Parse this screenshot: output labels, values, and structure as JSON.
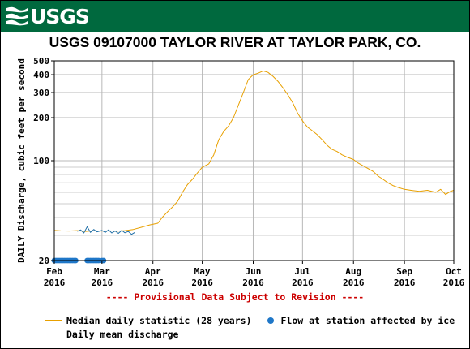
{
  "header": {
    "logo_text": "USGS",
    "colors": {
      "background": "#00693e",
      "logo": "#ffffff"
    }
  },
  "chart_data": {
    "type": "line",
    "title": "USGS 09107000 TAYLOR RIVER AT TAYLOR PARK, CO.",
    "ylabel": "DAILY Discharge, cubic feet per second",
    "yscale": "log",
    "ylim": [
      20,
      500
    ],
    "yticks": [
      20,
      100,
      200,
      300,
      400,
      500
    ],
    "xlim": [
      "2016-02-01",
      "2016-10-01"
    ],
    "x_ticks": [
      {
        "date": "2016-02-01",
        "month": "Feb",
        "year": "2016"
      },
      {
        "date": "2016-03-01",
        "month": "Mar",
        "year": "2016"
      },
      {
        "date": "2016-04-01",
        "month": "Apr",
        "year": "2016"
      },
      {
        "date": "2016-05-01",
        "month": "May",
        "year": "2016"
      },
      {
        "date": "2016-06-01",
        "month": "Jun",
        "year": "2016"
      },
      {
        "date": "2016-07-01",
        "month": "Jul",
        "year": "2016"
      },
      {
        "date": "2016-08-01",
        "month": "Aug",
        "year": "2016"
      },
      {
        "date": "2016-09-01",
        "month": "Sep",
        "year": "2016"
      },
      {
        "date": "2016-10-01",
        "month": "Oct",
        "year": "2016"
      }
    ],
    "grid": true,
    "annotation": "---- Provisional Data Subject to Revision ----",
    "series": [
      {
        "name": "Median daily statistic (28 years)",
        "color": "#e8a000",
        "points": [
          [
            "2016-02-01",
            32.5
          ],
          [
            "2016-02-05",
            32.3
          ],
          [
            "2016-02-10",
            32.2
          ],
          [
            "2016-02-15",
            32.4
          ],
          [
            "2016-02-20",
            32.0
          ],
          [
            "2016-02-25",
            32.3
          ],
          [
            "2016-03-01",
            32.2
          ],
          [
            "2016-03-05",
            32.3
          ],
          [
            "2016-03-10",
            32.1
          ],
          [
            "2016-03-15",
            32.4
          ],
          [
            "2016-03-20",
            33.0
          ],
          [
            "2016-03-25",
            34.2
          ],
          [
            "2016-03-30",
            35.5
          ],
          [
            "2016-04-04",
            36.5
          ],
          [
            "2016-04-07",
            40.5
          ],
          [
            "2016-04-10",
            44.0
          ],
          [
            "2016-04-13",
            47.5
          ],
          [
            "2016-04-16",
            52.0
          ],
          [
            "2016-04-19",
            60.0
          ],
          [
            "2016-04-22",
            68.0
          ],
          [
            "2016-04-25",
            74.0
          ],
          [
            "2016-04-28",
            82.0
          ],
          [
            "2016-05-01",
            90.0
          ],
          [
            "2016-05-05",
            95.0
          ],
          [
            "2016-05-08",
            110.0
          ],
          [
            "2016-05-11",
            140.0
          ],
          [
            "2016-05-14",
            160.0
          ],
          [
            "2016-05-17",
            175.0
          ],
          [
            "2016-05-20",
            200.0
          ],
          [
            "2016-05-23",
            245.0
          ],
          [
            "2016-05-26",
            300.0
          ],
          [
            "2016-05-29",
            370.0
          ],
          [
            "2016-06-01",
            400.0
          ],
          [
            "2016-06-04",
            410.0
          ],
          [
            "2016-06-07",
            425.0
          ],
          [
            "2016-06-10",
            415.0
          ],
          [
            "2016-06-13",
            390.0
          ],
          [
            "2016-06-16",
            360.0
          ],
          [
            "2016-06-19",
            325.0
          ],
          [
            "2016-06-22",
            290.0
          ],
          [
            "2016-06-25",
            255.0
          ],
          [
            "2016-06-28",
            215.0
          ],
          [
            "2016-07-01",
            190.0
          ],
          [
            "2016-07-04",
            172.0
          ],
          [
            "2016-07-07",
            162.0
          ],
          [
            "2016-07-10",
            152.0
          ],
          [
            "2016-07-13",
            140.0
          ],
          [
            "2016-07-16",
            128.0
          ],
          [
            "2016-07-19",
            120.0
          ],
          [
            "2016-07-22",
            116.0
          ],
          [
            "2016-07-25",
            110.0
          ],
          [
            "2016-07-28",
            106.0
          ],
          [
            "2016-08-01",
            102.0
          ],
          [
            "2016-08-04",
            96.0
          ],
          [
            "2016-08-07",
            92.0
          ],
          [
            "2016-08-10",
            88.0
          ],
          [
            "2016-08-13",
            84.0
          ],
          [
            "2016-08-16",
            78.0
          ],
          [
            "2016-08-19",
            74.0
          ],
          [
            "2016-08-22",
            70.0
          ],
          [
            "2016-08-25",
            67.0
          ],
          [
            "2016-08-28",
            65.0
          ],
          [
            "2016-09-01",
            63.0
          ],
          [
            "2016-09-05",
            62.0
          ],
          [
            "2016-09-10",
            61.0
          ],
          [
            "2016-09-15",
            62.0
          ],
          [
            "2016-09-20",
            60.0
          ],
          [
            "2016-09-23",
            63.0
          ],
          [
            "2016-09-26",
            58.0
          ],
          [
            "2016-09-29",
            61.0
          ],
          [
            "2016-10-01",
            62.0
          ]
        ]
      },
      {
        "name": "Daily mean discharge",
        "color": "#1f6fa8",
        "points": [
          [
            "2016-02-15",
            32.0
          ],
          [
            "2016-02-17",
            32.8
          ],
          [
            "2016-02-19",
            31.2
          ],
          [
            "2016-02-21",
            34.5
          ],
          [
            "2016-02-23",
            31.5
          ],
          [
            "2016-02-25",
            33.0
          ],
          [
            "2016-02-27",
            31.8
          ],
          [
            "2016-03-01",
            32.5
          ],
          [
            "2016-03-03",
            31.5
          ],
          [
            "2016-03-05",
            32.8
          ],
          [
            "2016-03-07",
            31.2
          ],
          [
            "2016-03-09",
            32.2
          ],
          [
            "2016-03-11",
            31.0
          ],
          [
            "2016-03-13",
            32.5
          ],
          [
            "2016-03-15",
            31.3
          ],
          [
            "2016-03-17",
            32.0
          ],
          [
            "2016-03-19",
            30.5
          ],
          [
            "2016-03-21",
            31.5
          ]
        ]
      }
    ],
    "markers": {
      "name": "Flow at station affected by ice",
      "color": "#1f77c8",
      "y": 20,
      "dates": [
        "2016-02-01",
        "2016-02-02",
        "2016-02-03",
        "2016-02-04",
        "2016-02-05",
        "2016-02-06",
        "2016-02-07",
        "2016-02-08",
        "2016-02-09",
        "2016-02-10",
        "2016-02-11",
        "2016-02-12",
        "2016-02-13",
        "2016-02-14",
        "2016-02-21",
        "2016-02-22",
        "2016-02-23",
        "2016-02-24",
        "2016-02-25",
        "2016-02-26",
        "2016-02-27",
        "2016-02-28",
        "2016-03-01",
        "2016-03-02"
      ]
    }
  }
}
